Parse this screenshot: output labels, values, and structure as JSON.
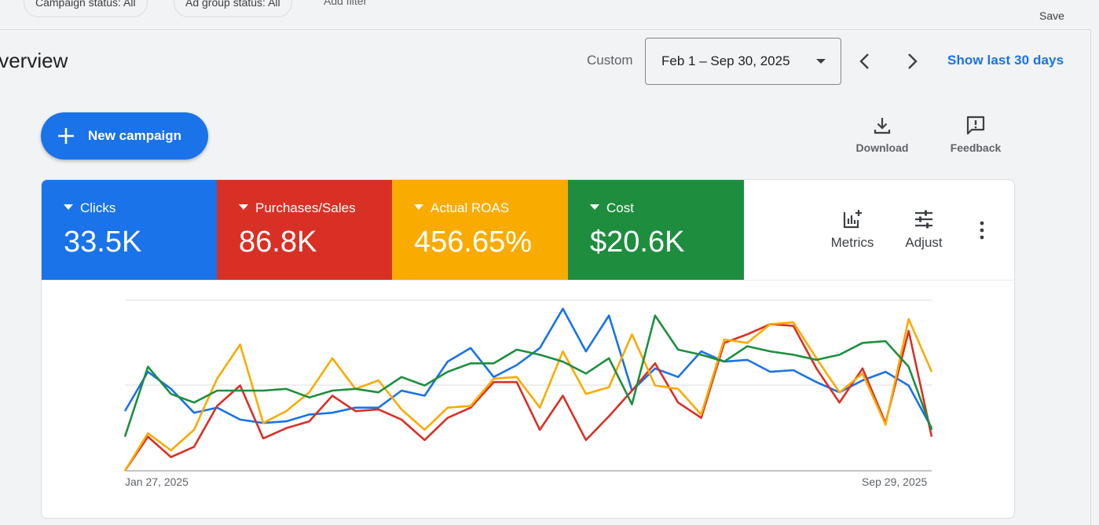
{
  "filters": {
    "campaign_status": "Campaign status: All",
    "ad_group_status": "Ad group status: All",
    "add_filter": "Add filter",
    "save_label": "Save"
  },
  "header": {
    "title": "Overview",
    "date_mode": "Custom",
    "date_range": "Feb 1 – Sep 30, 2025",
    "show_last": "Show last 30 days"
  },
  "actions": {
    "new_campaign": "New campaign",
    "download": "Download",
    "feedback": "Feedback",
    "metrics": "Metrics",
    "adjust": "Adjust"
  },
  "scorecards": [
    {
      "label": "Clicks",
      "value": "33.5K",
      "color": "#1a73e8"
    },
    {
      "label": "Purchases/Sales",
      "value": "86.8K",
      "color": "#d93025"
    },
    {
      "label": "Actual ROAS",
      "value": "456.65%",
      "color": "#f9ab00"
    },
    {
      "label": "Cost",
      "value": "$20.6K",
      "color": "#1e8e3e"
    }
  ],
  "chart_data": {
    "type": "line",
    "x_labels": [
      "Jan 27, 2025",
      "Sep 29, 2025"
    ],
    "points_per_series": 36,
    "grid": true,
    "ylim": [
      0,
      100
    ],
    "series": [
      {
        "name": "Clicks",
        "color": "#1a73e8",
        "values": [
          35,
          58,
          48,
          34,
          37,
          30,
          28,
          29,
          33,
          34,
          37,
          37,
          47,
          44,
          64,
          72,
          55,
          62,
          72,
          95,
          70,
          91,
          47,
          60,
          55,
          70,
          64,
          65,
          58,
          59,
          52,
          46,
          53,
          58,
          50,
          25
        ]
      },
      {
        "name": "Purchases/Sales",
        "color": "#d93025",
        "values": [
          0,
          20,
          8,
          14,
          38,
          50,
          19,
          25,
          29,
          44,
          35,
          36,
          30,
          18,
          31,
          37,
          52,
          52,
          24,
          44,
          18,
          32,
          47,
          63,
          40,
          31,
          75,
          80,
          86,
          85,
          60,
          40,
          60,
          28,
          82,
          20
        ]
      },
      {
        "name": "Actual ROAS",
        "color": "#f9ab00",
        "values": [
          0,
          22,
          12,
          24,
          54,
          74,
          28,
          35,
          46,
          66,
          48,
          53,
          36,
          24,
          37,
          38,
          54,
          55,
          37,
          70,
          45,
          49,
          80,
          50,
          48,
          33,
          77,
          75,
          86,
          87,
          66,
          46,
          57,
          27,
          89,
          58
        ]
      },
      {
        "name": "Cost",
        "color": "#1e8e3e",
        "values": [
          20,
          61,
          45,
          40,
          47,
          47,
          47,
          48,
          43,
          47,
          48,
          46,
          55,
          50,
          58,
          63,
          63,
          71,
          68,
          64,
          57,
          66,
          39,
          91,
          71,
          68,
          64,
          73,
          70,
          68,
          65,
          68,
          75,
          76,
          61,
          24
        ]
      }
    ]
  }
}
